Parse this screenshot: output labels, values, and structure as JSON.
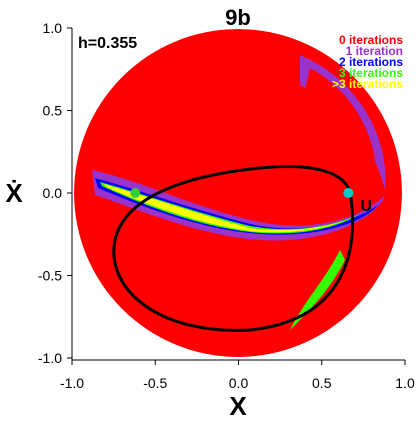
{
  "chart_data": {
    "type": "scatter",
    "title": "9b",
    "parameter_label": "h=0.355",
    "xlabel": "X",
    "ylabel": "Ẋ",
    "xlim": [
      -1.0,
      1.0
    ],
    "ylim": [
      -1.0,
      1.0
    ],
    "xticks": [
      "-1.0",
      "-0.5",
      "0.0",
      "0.5",
      "1.0"
    ],
    "yticks": [
      "1.0",
      "0.5",
      "0.0",
      "-0.5",
      "-1.0"
    ],
    "legend_position": "top-right",
    "legend": [
      {
        "label": "0 iterations",
        "color": "#ff0000"
      },
      {
        "label": "1 iteration",
        "color": "#9933cc"
      },
      {
        "label": "2 iterations",
        "color": "#0000ff"
      },
      {
        "label": "3 iterations",
        "color": "#33ff00"
      },
      {
        "label": ">3 iterations",
        "color": "#ffff00"
      }
    ],
    "region_boundary": {
      "center": [
        0.0,
        0.0
      ],
      "radius": 0.98
    },
    "curve_color": "#000000",
    "marker_color": "#00cccc",
    "points": [
      {
        "x": -0.62,
        "y": 0.0,
        "color": "#33cc33",
        "label": ""
      },
      {
        "x": 0.66,
        "y": 0.0,
        "color": "#00cccc",
        "label": "U"
      }
    ]
  }
}
